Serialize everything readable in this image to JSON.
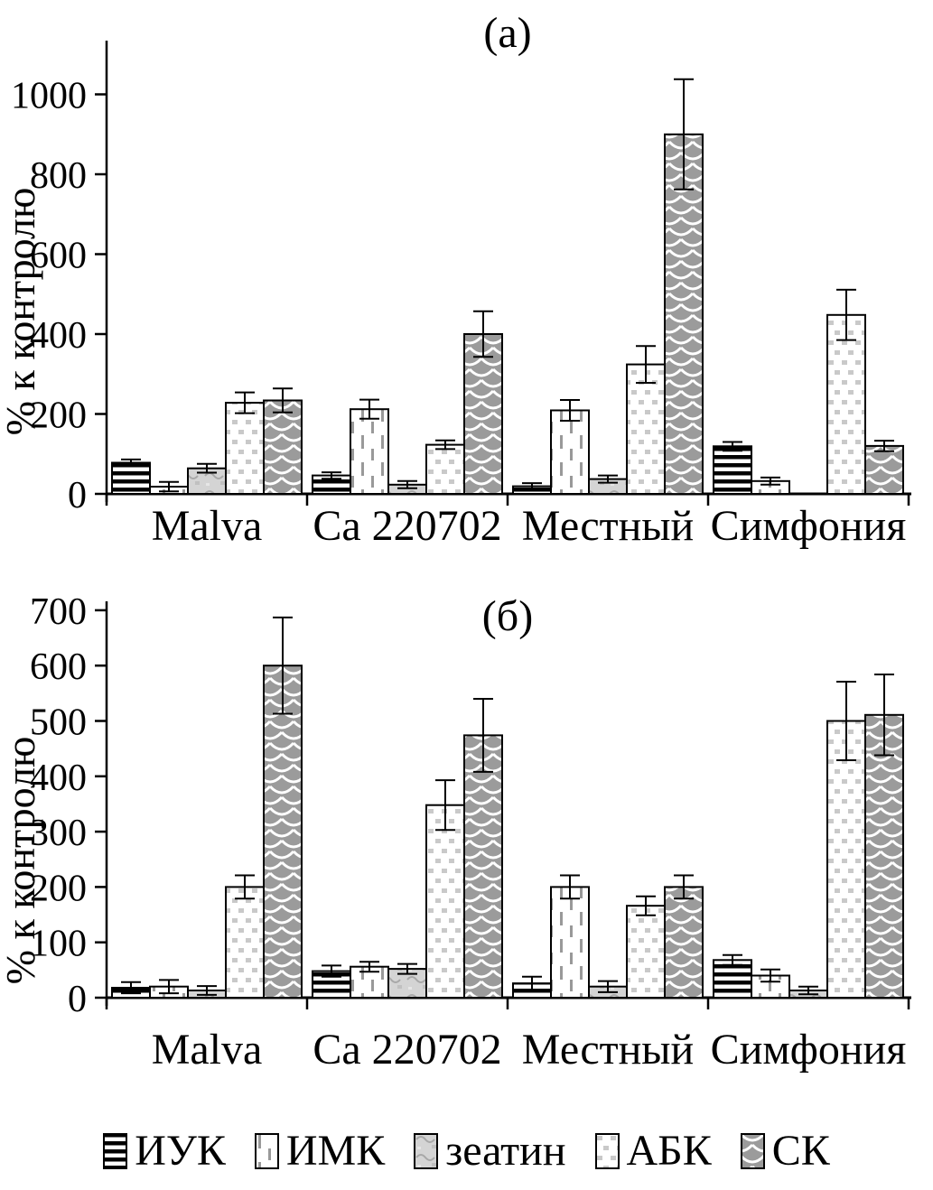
{
  "figure": {
    "background": "#ffffff",
    "text_color": "#000000",
    "axis_color": "#000000",
    "error_bar_color": "#000000"
  },
  "legend": {
    "items": [
      {
        "label": "ИУК",
        "pattern": "hstripes"
      },
      {
        "label": "ИМК",
        "pattern": "vdash"
      },
      {
        "label": "зеатин",
        "pattern": "zeatin"
      },
      {
        "label": "АБК",
        "pattern": "dots"
      },
      {
        "label": "СК",
        "pattern": "scales"
      }
    ]
  },
  "patterns": {
    "hstripes": {
      "desc": "black horizontal stripes on white",
      "fg": "#000000",
      "bg": "#ffffff"
    },
    "vdash": {
      "desc": "gray vertical dashes on white",
      "fg": "#999999",
      "bg": "#ffffff"
    },
    "zeatin": {
      "desc": "light gray with faint squiggles",
      "fg": "#a8a8a8",
      "bg": "#d4d4d4"
    },
    "dots": {
      "desc": "light gray squares on white",
      "fg": "#c9c9c9",
      "bg": "#ffffff"
    },
    "scales": {
      "desc": "white fish-scale arcs on gray",
      "fg": "#ffffff",
      "bg": "#9b9b9b"
    }
  },
  "chart_data": [
    {
      "type": "bar",
      "panel": "(а)",
      "ylabel": "% к контролю",
      "categories": [
        "Malva",
        "Ca 220702",
        "Местный",
        "Симфония"
      ],
      "ylim": [
        0,
        1130
      ],
      "yticks": [
        0,
        200,
        400,
        600,
        800,
        1000
      ],
      "grid": false,
      "legend_position": "bottom-shared",
      "series": [
        {
          "name": "ИУК",
          "values": [
            78,
            46,
            19,
            119
          ],
          "errors": [
            8,
            8,
            8,
            11
          ]
        },
        {
          "name": "ИМК",
          "values": [
            18,
            212,
            209,
            32
          ],
          "errors": [
            12,
            24,
            26,
            9
          ]
        },
        {
          "name": "зеатин",
          "values": [
            64,
            23,
            37,
            0
          ],
          "errors": [
            11,
            9,
            9,
            0
          ]
        },
        {
          "name": "АБК",
          "values": [
            228,
            123,
            324,
            448
          ],
          "errors": [
            26,
            11,
            46,
            63
          ]
        },
        {
          "name": "СК",
          "values": [
            234,
            400,
            900,
            120
          ],
          "errors": [
            30,
            57,
            138,
            13
          ]
        }
      ]
    },
    {
      "type": "bar",
      "panel": "(б)",
      "ylabel": "% к контролю",
      "categories": [
        "Malva",
        "Ca 220702",
        "Местный",
        "Симфония"
      ],
      "ylim": [
        0,
        720
      ],
      "yticks": [
        0,
        100,
        200,
        300,
        400,
        500,
        600,
        700
      ],
      "grid": false,
      "legend_position": "bottom-shared",
      "series": [
        {
          "name": "ИУК",
          "values": [
            18,
            48,
            26,
            68
          ],
          "errors": [
            10,
            10,
            12,
            9
          ]
        },
        {
          "name": "ИМК",
          "values": [
            20,
            56,
            200,
            40
          ],
          "errors": [
            12,
            9,
            21,
            11
          ]
        },
        {
          "name": "зеатин",
          "values": [
            13,
            52,
            20,
            13
          ],
          "errors": [
            8,
            9,
            10,
            7
          ]
        },
        {
          "name": "АБК",
          "values": [
            200,
            348,
            166,
            500
          ],
          "errors": [
            21,
            45,
            17,
            71
          ]
        },
        {
          "name": "СК",
          "values": [
            600,
            474,
            200,
            511
          ],
          "errors": [
            87,
            66,
            21,
            73
          ]
        }
      ]
    }
  ]
}
